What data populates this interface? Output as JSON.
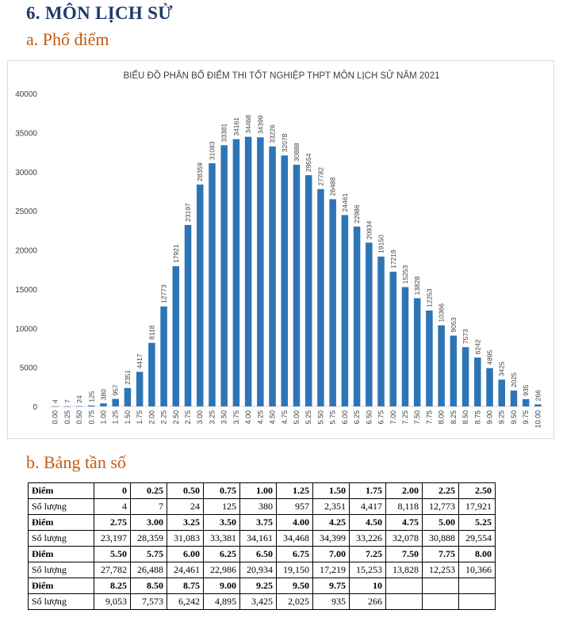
{
  "page": {
    "heading": "6. MÔN LỊCH SỬ",
    "section_a": "a. Phổ điểm",
    "section_b": "b. Bảng tần số"
  },
  "colors": {
    "bar": "#2e75b6",
    "heading": "#1f3a6b",
    "subheading": "#c55a11",
    "grid": "#d9d9d9"
  },
  "chart_data": {
    "type": "bar",
    "title": "BIỂU ĐỒ PHÂN BỐ ĐIỂM THI TỐT NGHIỆP THPT MÔN LỊCH SỬ NĂM 2021",
    "xlabel": "",
    "ylabel": "",
    "ylim": [
      0,
      40000
    ],
    "yticks": [
      0,
      5000,
      10000,
      15000,
      20000,
      25000,
      30000,
      35000,
      40000
    ],
    "grid": false,
    "legend": "none",
    "categories": [
      "0.00",
      "0.25",
      "0.50",
      "0.75",
      "1.00",
      "1.25",
      "1.50",
      "1.75",
      "2.00",
      "2.25",
      "2.50",
      "2.75",
      "3.00",
      "3.25",
      "3.50",
      "3.75",
      "4.00",
      "4.25",
      "4.50",
      "4.75",
      "5.00",
      "5.25",
      "5.50",
      "5.75",
      "6.00",
      "6.25",
      "6.50",
      "6.75",
      "7.00",
      "7.25",
      "7.50",
      "7.75",
      "8.00",
      "8.25",
      "8.50",
      "8.75",
      "9.00",
      "9.25",
      "9.50",
      "9.75",
      "10.00"
    ],
    "values": [
      4,
      7,
      24,
      125,
      380,
      957,
      2351,
      4417,
      8118,
      12773,
      17921,
      23197,
      28359,
      31083,
      33381,
      34161,
      34468,
      34399,
      33226,
      32078,
      30888,
      29554,
      27782,
      26488,
      24461,
      22986,
      20934,
      19150,
      17219,
      15253,
      13828,
      12253,
      10366,
      9053,
      7573,
      6242,
      4895,
      3425,
      2025,
      935,
      266
    ]
  },
  "table": {
    "score_label": "Điểm",
    "count_label": "Số lượng",
    "rows": [
      {
        "scores": [
          "0",
          "0.25",
          "0.50",
          "0.75",
          "1.00",
          "1.25",
          "1.50",
          "1.75",
          "2.00",
          "2.25",
          "2.50"
        ],
        "counts": [
          "4",
          "7",
          "24",
          "125",
          "380",
          "957",
          "2,351",
          "4,417",
          "8,118",
          "12,773",
          "17,921"
        ]
      },
      {
        "scores": [
          "2.75",
          "3.00",
          "3.25",
          "3.50",
          "3.75",
          "4.00",
          "4.25",
          "4.50",
          "4.75",
          "5.00",
          "5.25"
        ],
        "counts": [
          "23,197",
          "28,359",
          "31,083",
          "33,381",
          "34,161",
          "34,468",
          "34,399",
          "33,226",
          "32,078",
          "30,888",
          "29,554"
        ]
      },
      {
        "scores": [
          "5.50",
          "5.75",
          "6.00",
          "6.25",
          "6.50",
          "6.75",
          "7.00",
          "7.25",
          "7.50",
          "7.75",
          "8.00"
        ],
        "counts": [
          "27,782",
          "26,488",
          "24,461",
          "22,986",
          "20,934",
          "19,150",
          "17,219",
          "15,253",
          "13,828",
          "12,253",
          "10,366"
        ]
      },
      {
        "scores": [
          "8.25",
          "8.50",
          "8.75",
          "9.00",
          "9.25",
          "9.50",
          "9.75",
          "10",
          "",
          "",
          ""
        ],
        "counts": [
          "9,053",
          "7,573",
          "6,242",
          "4,895",
          "3,425",
          "2,025",
          "935",
          "266",
          "",
          "",
          ""
        ]
      }
    ]
  }
}
